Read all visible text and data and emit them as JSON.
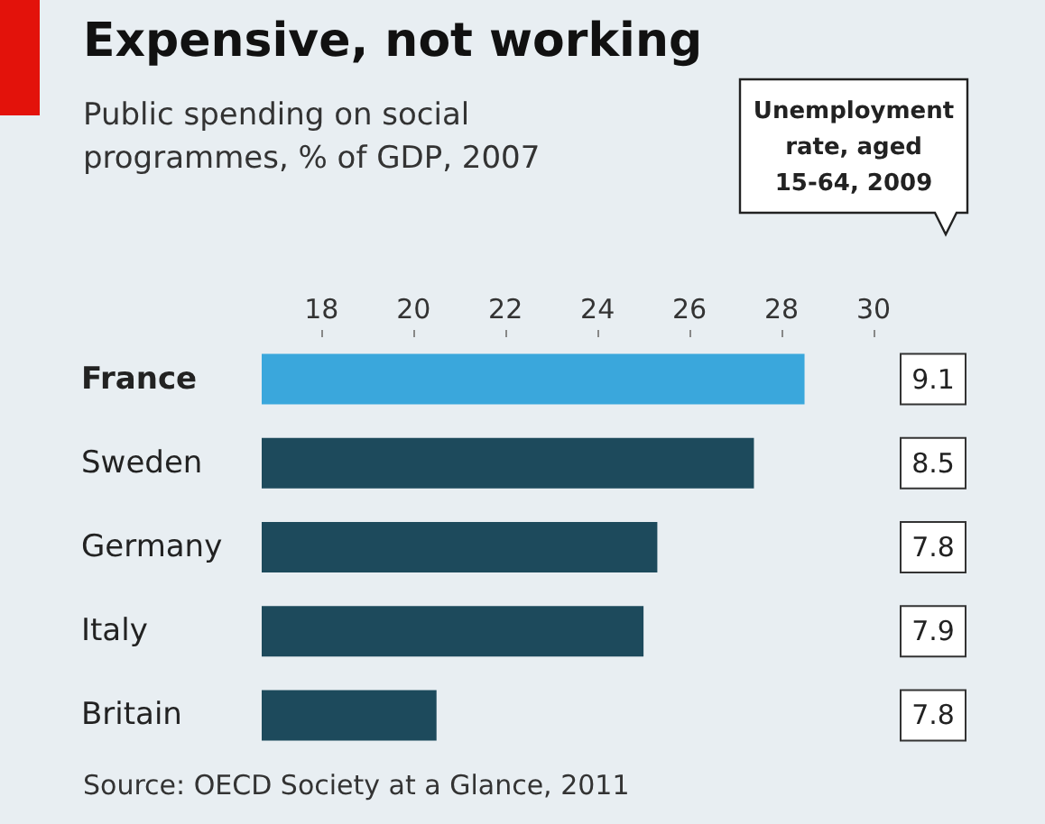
{
  "chart_data": {
    "type": "bar",
    "orientation": "horizontal",
    "title": "Expensive, not working",
    "subtitle": "Public spending on social\nprogrammes, % of GDP, 2007",
    "categories": [
      "France",
      "Sweden",
      "Germany",
      "Italy",
      "Britain"
    ],
    "values": [
      28.5,
      27.4,
      25.3,
      25.0,
      20.5
    ],
    "colors": [
      "#3aa7dc",
      "#1d4a5c",
      "#1d4a5c",
      "#1d4a5c",
      "#1d4a5c"
    ],
    "xlim": [
      16.7,
      30
    ],
    "xticks": [
      18,
      20,
      22,
      24,
      26,
      28,
      30
    ],
    "grid": false,
    "annotations": [
      "Unemployment\nrate, aged\n15-64, 2009",
      "9.1",
      "8.5",
      "7.8",
      "7.9",
      "7.8",
      "Source: OECD Society at a Glance, 2011"
    ]
  }
}
